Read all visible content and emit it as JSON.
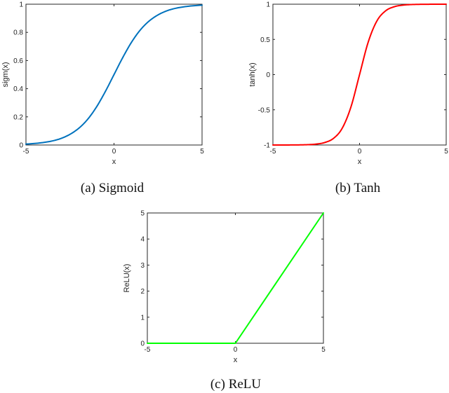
{
  "chart_data": [
    {
      "type": "line",
      "caption": "(a) Sigmoid",
      "xlabel": "x",
      "ylabel": "sigm(x)",
      "xlim": [
        -5,
        5
      ],
      "ylim": [
        0,
        1
      ],
      "xticks": [
        "-5",
        "0",
        "5"
      ],
      "yticks": [
        "0",
        "0.2",
        "0.4",
        "0.6",
        "0.8",
        "1"
      ],
      "grid": false,
      "color": "#0072bd",
      "series": [
        {
          "x": [
            -5,
            -4.5,
            -4,
            -3.5,
            -3,
            -2.5,
            -2,
            -1.5,
            -1,
            -0.5,
            0,
            0.5,
            1,
            1.5,
            2,
            2.5,
            3,
            3.5,
            4,
            4.5,
            5
          ],
          "y": [
            0.0067,
            0.011,
            0.018,
            0.029,
            0.047,
            0.076,
            0.119,
            0.182,
            0.269,
            0.378,
            0.5,
            0.622,
            0.731,
            0.818,
            0.881,
            0.924,
            0.953,
            0.971,
            0.982,
            0.989,
            0.9933
          ]
        }
      ]
    },
    {
      "type": "line",
      "caption": "(b) Tanh",
      "xlabel": "x",
      "ylabel": "tanh(x)",
      "xlim": [
        -5,
        5
      ],
      "ylim": [
        -1,
        1
      ],
      "xticks": [
        "-5",
        "0",
        "5"
      ],
      "yticks": [
        "-1",
        "-0.5",
        "0",
        "0.5",
        "1"
      ],
      "grid": false,
      "color": "#ff0000",
      "series": [
        {
          "x": [
            -5,
            -4.5,
            -4,
            -3.5,
            -3,
            -2.5,
            -2,
            -1.5,
            -1,
            -0.5,
            0,
            0.5,
            1,
            1.5,
            2,
            2.5,
            3,
            3.5,
            4,
            4.5,
            5
          ],
          "y": [
            -0.9999,
            -0.9998,
            -0.9993,
            -0.9982,
            -0.9951,
            -0.9866,
            -0.964,
            -0.9051,
            -0.7616,
            -0.4621,
            0,
            0.4621,
            0.7616,
            0.9051,
            0.964,
            0.9866,
            0.9951,
            0.9982,
            0.9993,
            0.9998,
            0.9999
          ]
        }
      ]
    },
    {
      "type": "line",
      "caption": "(c) ReLU",
      "xlabel": "x",
      "ylabel": "ReLU(x)",
      "xlim": [
        -5,
        5
      ],
      "ylim": [
        0,
        5
      ],
      "xticks": [
        "-5",
        "0",
        "5"
      ],
      "yticks": [
        "0",
        "1",
        "2",
        "3",
        "4",
        "5"
      ],
      "grid": false,
      "color": "#00ff00",
      "series": [
        {
          "x": [
            -5,
            0,
            5
          ],
          "y": [
            0,
            0,
            5
          ]
        }
      ]
    }
  ]
}
